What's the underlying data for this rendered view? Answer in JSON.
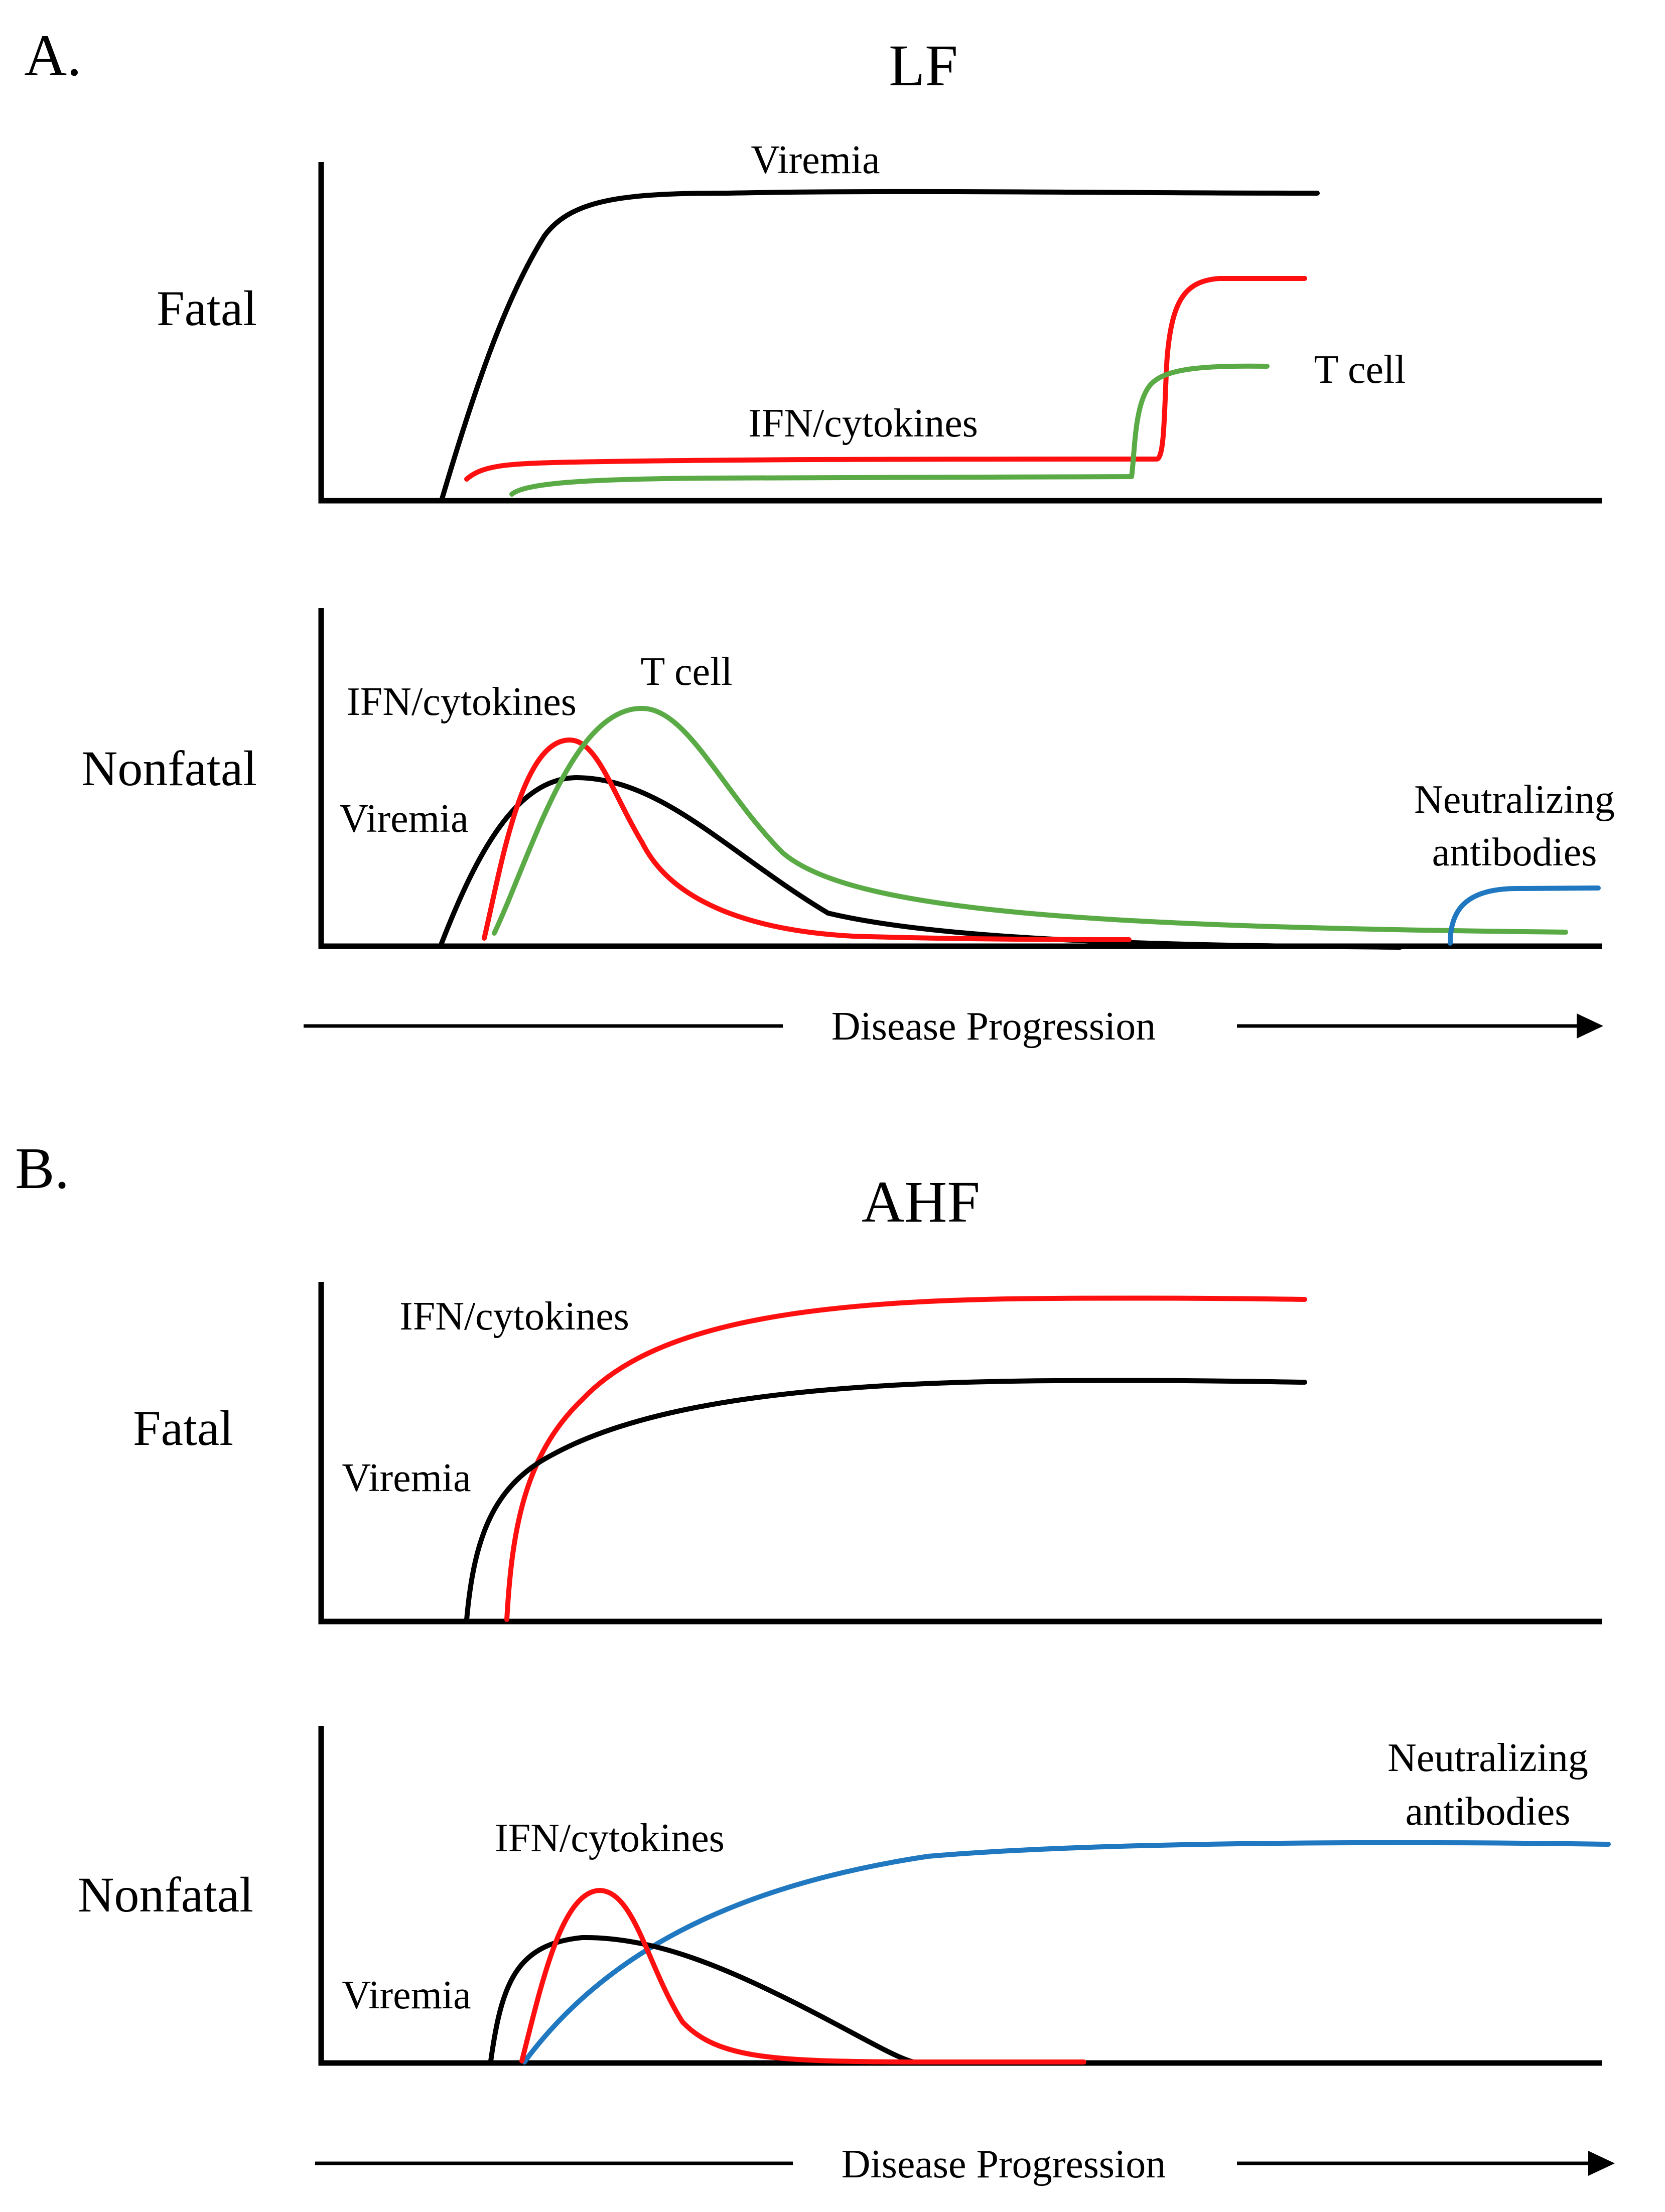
{
  "panels": {
    "a": {
      "letter": "A.",
      "title": "LF",
      "fatal": {
        "row_label": "Fatal",
        "labels": {
          "viremia": "Viremia",
          "ifn": "IFN/cytokines",
          "tcell": "T cell"
        }
      },
      "nonfatal": {
        "row_label": "Nonfatal",
        "labels": {
          "ifn": "IFN/cytokines",
          "tcell": "T cell",
          "viremia": "Viremia",
          "nab_line1": "Neutralizing",
          "nab_line2": "antibodies"
        }
      },
      "progression": "Disease Progression"
    },
    "b": {
      "letter": "B.",
      "title": "AHF",
      "fatal": {
        "row_label": "Fatal",
        "labels": {
          "ifn": "IFN/cytokines",
          "viremia": "Viremia"
        }
      },
      "nonfatal": {
        "row_label": "Nonfatal",
        "labels": {
          "nab_line1": "Neutralizing",
          "nab_line2": "antibodies",
          "ifn": "IFN/cytokines",
          "viremia": "Viremia"
        }
      },
      "progression": "Disease Progression"
    }
  },
  "colors": {
    "viremia": "#000000",
    "ifn": "#ff1010",
    "tcell": "#5aaa46",
    "antibodies": "#1f78c0",
    "axis": "#000000"
  }
}
